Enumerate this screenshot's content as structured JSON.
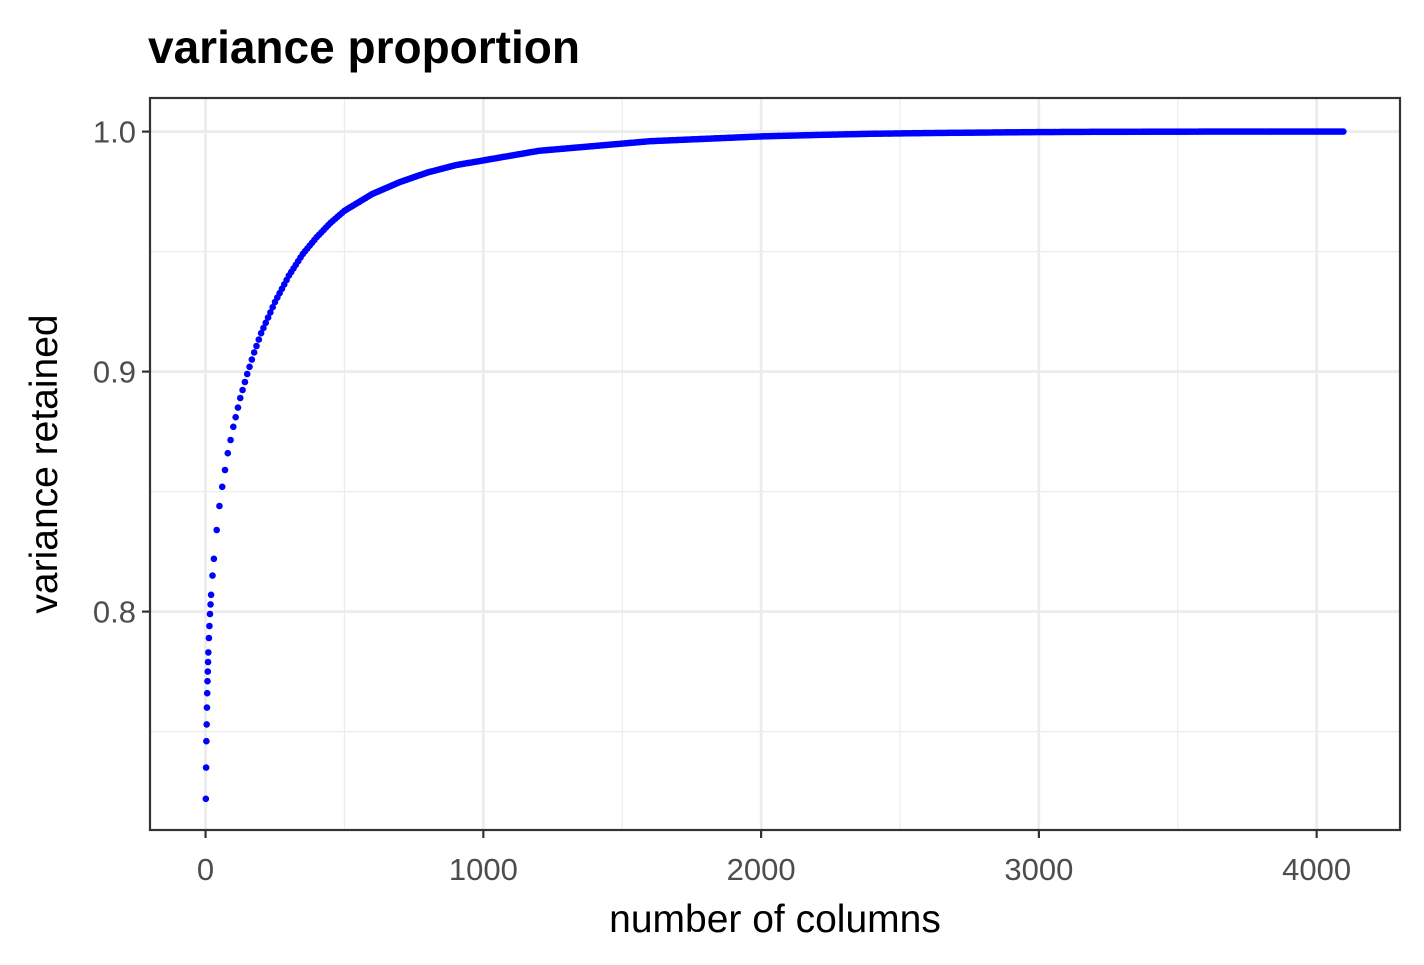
{
  "chart_data": {
    "type": "scatter",
    "title": "variance proportion",
    "xlabel": "number of columns",
    "ylabel": "variance retained",
    "xlim": [
      -200,
      4300
    ],
    "ylim": [
      0.709,
      1.014
    ],
    "x_ticks": [
      0,
      1000,
      2000,
      3000,
      4000
    ],
    "x_tick_labels": [
      "0",
      "1000",
      "2000",
      "3000",
      "4000"
    ],
    "y_ticks": [
      0.8,
      0.9,
      1.0
    ],
    "y_tick_labels": [
      "0.8",
      "0.9",
      "1.0"
    ],
    "x_minor_ticks": [
      500,
      1500,
      2500,
      3500
    ],
    "y_minor_ticks": [
      0.75,
      0.85,
      0.95
    ],
    "grid": true,
    "legend": "none",
    "point_color": "#0000ff",
    "series": [
      {
        "x": [
          1,
          2,
          3,
          4,
          5,
          6,
          7,
          8,
          9,
          10,
          12,
          14,
          16,
          18,
          20,
          25,
          30,
          40,
          50,
          60,
          80,
          100,
          125,
          150,
          175,
          200,
          250,
          300,
          350,
          400,
          450,
          500,
          600,
          700,
          800,
          900,
          1000,
          1200,
          1400,
          1600,
          1800,
          2000,
          2200,
          2400,
          2600,
          2800,
          3000,
          3200,
          3400,
          3600,
          3800,
          4000,
          4096
        ],
        "y": [
          0.722,
          0.735,
          0.746,
          0.753,
          0.76,
          0.766,
          0.771,
          0.775,
          0.779,
          0.783,
          0.789,
          0.794,
          0.799,
          0.803,
          0.807,
          0.815,
          0.822,
          0.834,
          0.844,
          0.852,
          0.866,
          0.877,
          0.889,
          0.899,
          0.908,
          0.916,
          0.929,
          0.94,
          0.949,
          0.956,
          0.962,
          0.967,
          0.974,
          0.979,
          0.983,
          0.986,
          0.988,
          0.992,
          0.994,
          0.996,
          0.997,
          0.998,
          0.9986,
          0.9991,
          0.9994,
          0.9996,
          0.9998,
          0.9999,
          0.99995,
          1.0,
          1.0,
          1.0,
          1.0
        ]
      }
    ]
  }
}
